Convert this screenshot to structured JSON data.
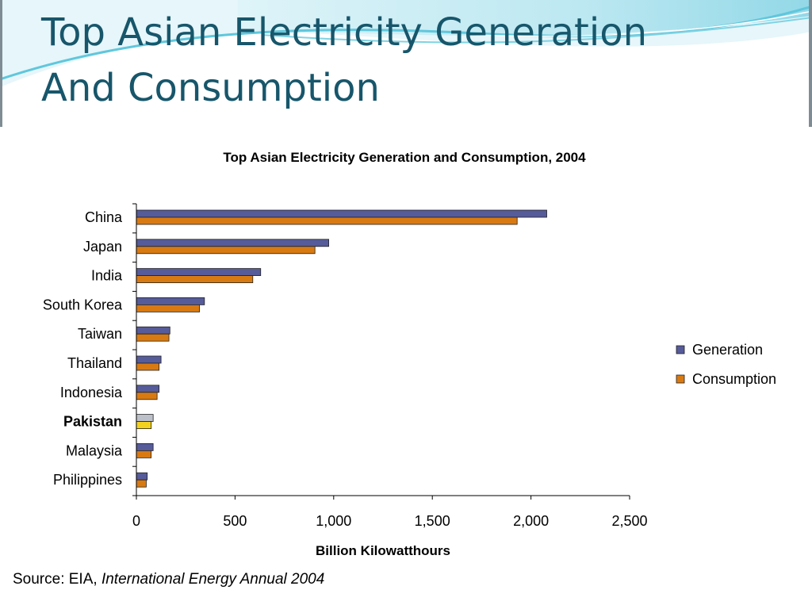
{
  "slide": {
    "title_line1": "Top Asian Electricity Generation",
    "title_line2": "And Consumption"
  },
  "source": {
    "prefix": "Source: EIA,",
    "publication": "International Energy Annual 2004"
  },
  "colors": {
    "generation": "#565b9a",
    "consumption": "#d87a12",
    "highlight_generation": "#bcc0c9",
    "highlight_consumption": "#f3d21f",
    "title": "#17566b",
    "wave_light": "#aee3ee",
    "wave_mid": "#5fc7dc"
  },
  "chart_data": {
    "type": "bar",
    "orientation": "horizontal",
    "title": "Top Asian Electricity Generation and Consumption, 2004",
    "xlabel": "Billion Kilowatthours",
    "ylabel": "",
    "xlim": [
      0,
      2500
    ],
    "xticks": [
      0,
      500,
      1000,
      1500,
      2000,
      2500
    ],
    "xtick_labels": [
      "0",
      "500",
      "1,000",
      "1,500",
      "2,000",
      "2,500"
    ],
    "categories": [
      "China",
      "Japan",
      "India",
      "South Korea",
      "Taiwan",
      "Thailand",
      "Indonesia",
      "Pakistan",
      "Malaysia",
      "Philippines"
    ],
    "highlight": "Pakistan",
    "series": [
      {
        "name": "Generation",
        "values": [
          2080,
          975,
          630,
          345,
          170,
          125,
          115,
          85,
          85,
          55
        ]
      },
      {
        "name": "Consumption",
        "values": [
          1930,
          905,
          590,
          320,
          165,
          115,
          105,
          75,
          75,
          50
        ]
      }
    ],
    "legend": "right",
    "grid": false
  }
}
